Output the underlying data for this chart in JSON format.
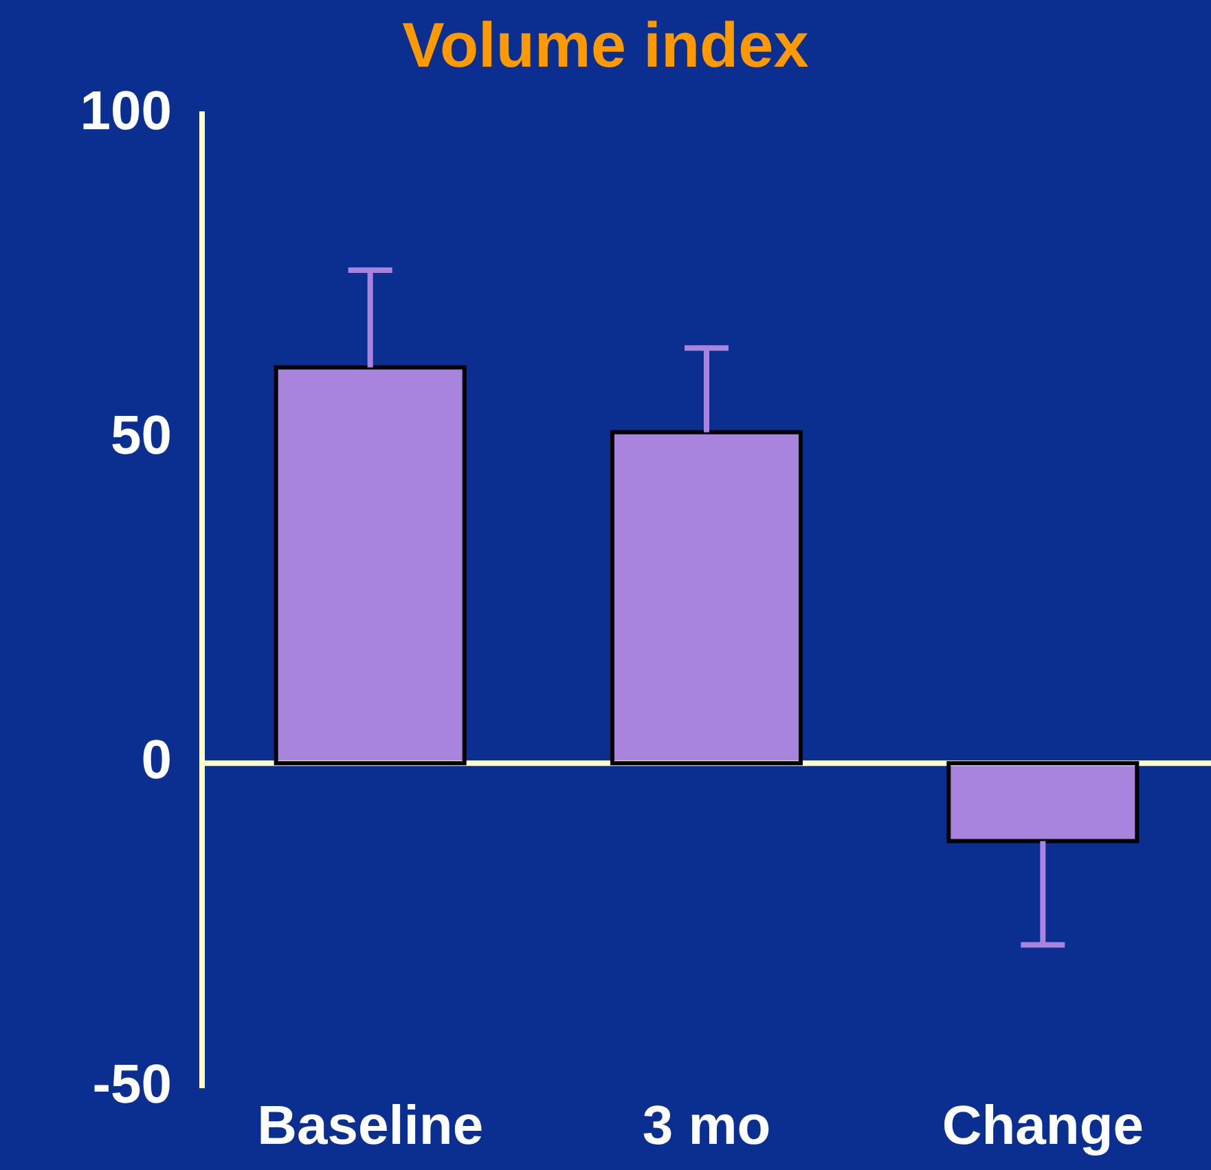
{
  "chart_data": {
    "type": "bar",
    "title": "Volume index",
    "categories": [
      "Baseline",
      "3 mo",
      "Change"
    ],
    "values": [
      61,
      51,
      -12
    ],
    "color": "#a884de",
    "errors": [
      [
        61,
        76
      ],
      [
        51,
        64
      ],
      [
        -28,
        -12
      ]
    ],
    "ref_lines": [
      {
        "axis": "y",
        "value": 0,
        "color": "#ffffc8"
      }
    ],
    "ylim": [
      -50,
      100
    ],
    "yticks": [
      -50,
      0,
      50,
      100
    ],
    "grid": false,
    "legend": false
  }
}
